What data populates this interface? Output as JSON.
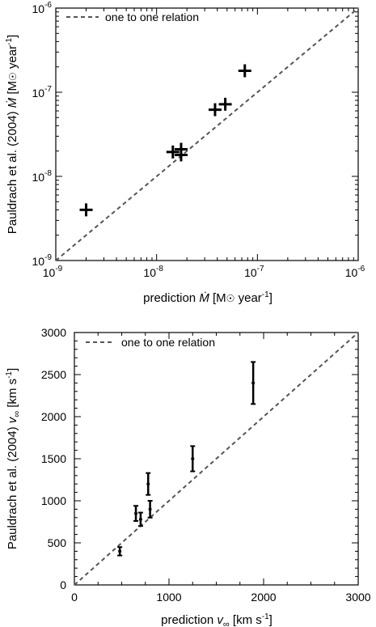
{
  "chart_data": [
    {
      "type": "scatter",
      "xscale": "log",
      "yscale": "log",
      "xlim": [
        1e-09,
        1e-06
      ],
      "ylim": [
        1e-09,
        1e-06
      ],
      "xlabel": "prediction Ṁ [M☉ year⁻¹]",
      "ylabel": "Pauldrach et al. (2004) Ṁ [M☉ year⁻¹]",
      "x_ticks": [
        {
          "value": 1e-09,
          "base": "10",
          "exp": "-9"
        },
        {
          "value": 1e-08,
          "base": "10",
          "exp": "-8"
        },
        {
          "value": 1e-07,
          "base": "10",
          "exp": "-7"
        },
        {
          "value": 1e-06,
          "base": "10",
          "exp": "-6"
        }
      ],
      "y_ticks": [
        {
          "value": 1e-09,
          "base": "10",
          "exp": "-9"
        },
        {
          "value": 1e-08,
          "base": "10",
          "exp": "-8"
        },
        {
          "value": 1e-07,
          "base": "10",
          "exp": "-7"
        },
        {
          "value": 1e-06,
          "base": "10",
          "exp": "-6"
        }
      ],
      "legend": {
        "label": "one to one relation",
        "placement": "top-left"
      },
      "reference_line": "one to one relation",
      "points": [
        {
          "x": 2e-09,
          "y": 4e-09
        },
        {
          "x": 1.45e-08,
          "y": 1.95e-08
        },
        {
          "x": 1.75e-08,
          "y": 2.1e-08
        },
        {
          "x": 1.75e-08,
          "y": 1.8e-08
        },
        {
          "x": 3.8e-08,
          "y": 6.2e-08
        },
        {
          "x": 4.8e-08,
          "y": 7.2e-08
        },
        {
          "x": 7.5e-08,
          "y": 1.8e-07
        }
      ]
    },
    {
      "type": "scatter",
      "xlim": [
        0,
        3000
      ],
      "ylim": [
        0,
        3000
      ],
      "xlabel": "prediction v∞ [km s⁻¹]",
      "ylabel": "Pauldrach et al. (2004) v∞ [km s⁻¹]",
      "x_ticks": [
        "0",
        "1000",
        "2000",
        "3000"
      ],
      "y_ticks": [
        "0",
        "500",
        "1000",
        "1500",
        "2000",
        "2500",
        "3000"
      ],
      "legend": {
        "label": "one to one relation",
        "placement": "top-left"
      },
      "reference_line": "one to one relation",
      "points": [
        {
          "x": 480,
          "y": 400,
          "err": 50
        },
        {
          "x": 650,
          "y": 850,
          "err": 90
        },
        {
          "x": 700,
          "y": 780,
          "err": 80
        },
        {
          "x": 780,
          "y": 1200,
          "err": 130
        },
        {
          "x": 800,
          "y": 900,
          "err": 100
        },
        {
          "x": 1250,
          "y": 1500,
          "err": 150
        },
        {
          "x": 1890,
          "y": 2400,
          "err": 250
        }
      ]
    }
  ]
}
